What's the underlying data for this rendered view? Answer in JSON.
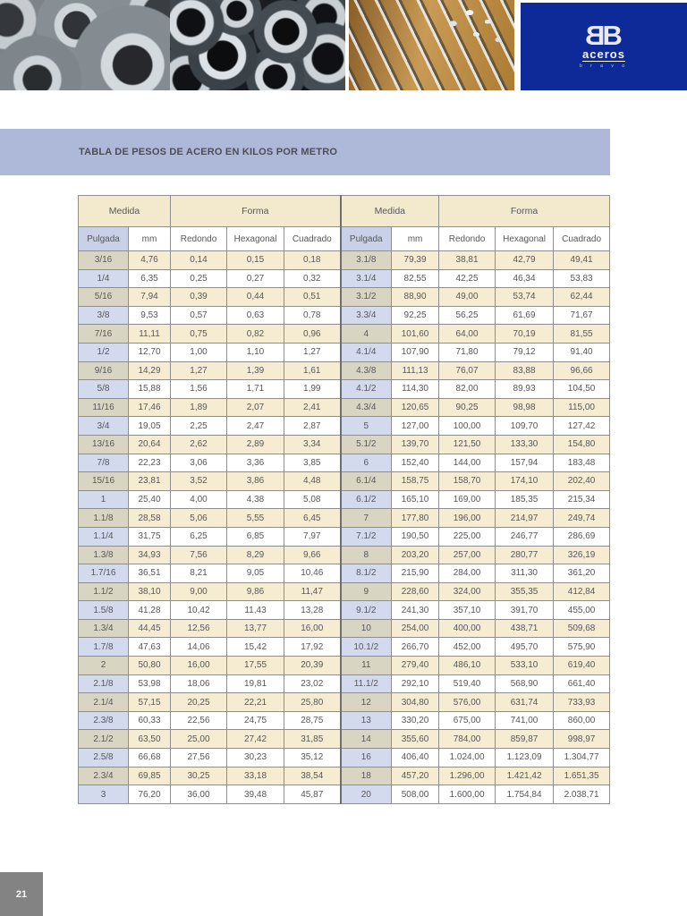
{
  "header": {
    "photos": [
      "steel-coils",
      "steel-tubes",
      "steel-rods"
    ],
    "logo": {
      "brand_initials": "BB",
      "brand_name": "aceros",
      "brand_sub": "b r a v o"
    },
    "brand_color": "#0e2a99"
  },
  "title_bar": {
    "title": "TABLA DE PESOS DE ACERO EN KILOS POR METRO",
    "background": "#aeb9da"
  },
  "table": {
    "group_headers": {
      "medida_left": "Medida",
      "forma_left": "Forma",
      "medida_right": "Medida",
      "forma_right": "Forma"
    },
    "column_headers": [
      "Pulgada",
      "mm",
      "Redondo",
      "Hexagonal",
      "Cuadrado",
      "Pulgada",
      "mm",
      "Redondo",
      "Hexagonal",
      "Cuadrado"
    ],
    "colors": {
      "cream": "#f6ecd2",
      "pulgada_cream": "#d9d5c3",
      "pulgada_lavender": "#d3daee",
      "header_cream": "#f3e9cd",
      "subheader_lavender": "#c9d1e8",
      "border": "#8e8e8e"
    },
    "rows": [
      [
        "3/16",
        "4,76",
        "0,14",
        "0,15",
        "0,18",
        "3.1/8",
        "79,39",
        "38,81",
        "42,79",
        "49,41"
      ],
      [
        "1/4",
        "6,35",
        "0,25",
        "0,27",
        "0,32",
        "3.1/4",
        "82,55",
        "42,25",
        "46,34",
        "53,83"
      ],
      [
        "5/16",
        "7,94",
        "0,39",
        "0,44",
        "0,51",
        "3.1/2",
        "88,90",
        "49,00",
        "53,74",
        "62,44"
      ],
      [
        "3/8",
        "9,53",
        "0,57",
        "0,63",
        "0,78",
        "3.3/4",
        "92,25",
        "56,25",
        "61,69",
        "71,67"
      ],
      [
        "7/16",
        "11,11",
        "0,75",
        "0,82",
        "0,96",
        "4",
        "101,60",
        "64,00",
        "70,19",
        "81,55"
      ],
      [
        "1/2",
        "12,70",
        "1,00",
        "1,10",
        "1,27",
        "4.1/4",
        "107,90",
        "71,80",
        "79,12",
        "91,40"
      ],
      [
        "9/16",
        "14,29",
        "1,27",
        "1,39",
        "1,61",
        "4.3/8",
        "111,13",
        "76,07",
        "83,88",
        "96,66"
      ],
      [
        "5/8",
        "15,88",
        "1,56",
        "1,71",
        "1,99",
        "4.1/2",
        "114,30",
        "82,00",
        "89,93",
        "104,50"
      ],
      [
        "11/16",
        "17,46",
        "1,89",
        "2,07",
        "2,41",
        "4.3/4",
        "120,65",
        "90,25",
        "98,98",
        "115,00"
      ],
      [
        "3/4",
        "19,05",
        "2,25",
        "2,47",
        "2,87",
        "5",
        "127,00",
        "100,00",
        "109,70",
        "127,42"
      ],
      [
        "13/16",
        "20,64",
        "2,62",
        "2,89",
        "3,34",
        "5.1/2",
        "139,70",
        "121,50",
        "133,30",
        "154,80"
      ],
      [
        "7/8",
        "22,23",
        "3,06",
        "3,36",
        "3,85",
        "6",
        "152,40",
        "144,00",
        "157,94",
        "183,48"
      ],
      [
        "15/16",
        "23,81",
        "3,52",
        "3,86",
        "4,48",
        "6.1/4",
        "158,75",
        "158,70",
        "174,10",
        "202,40"
      ],
      [
        "1",
        "25,40",
        "4,00",
        "4,38",
        "5,08",
        "6.1/2",
        "165,10",
        "169,00",
        "185,35",
        "215,34"
      ],
      [
        "1.1/8",
        "28,58",
        "5,06",
        "5,55",
        "6,45",
        "7",
        "177,80",
        "196,00",
        "214,97",
        "249,74"
      ],
      [
        "1.1/4",
        "31,75",
        "6,25",
        "6,85",
        "7,97",
        "7.1/2",
        "190,50",
        "225,00",
        "246,77",
        "286,69"
      ],
      [
        "1.3/8",
        "34,93",
        "7,56",
        "8,29",
        "9,66",
        "8",
        "203,20",
        "257,00",
        "280,77",
        "326,19"
      ],
      [
        "1.7/16",
        "36,51",
        "8,21",
        "9,05",
        "10,46",
        "8.1/2",
        "215,90",
        "284,00",
        "311,30",
        "361,20"
      ],
      [
        "1.1/2",
        "38,10",
        "9,00",
        "9,86",
        "11,47",
        "9",
        "228,60",
        "324,00",
        "355,35",
        "412,84"
      ],
      [
        "1.5/8",
        "41,28",
        "10,42",
        "11,43",
        "13,28",
        "9.1/2",
        "241,30",
        "357,10",
        "391,70",
        "455,00"
      ],
      [
        "1.3/4",
        "44,45",
        "12,56",
        "13,77",
        "16,00",
        "10",
        "254,00",
        "400,00",
        "438,71",
        "509,68"
      ],
      [
        "1.7/8",
        "47,63",
        "14,06",
        "15,42",
        "17,92",
        "10.1/2",
        "266,70",
        "452,00",
        "495,70",
        "575,90"
      ],
      [
        "2",
        "50,80",
        "16,00",
        "17,55",
        "20,39",
        "11",
        "279,40",
        "486,10",
        "533,10",
        "619,40"
      ],
      [
        "2.1/8",
        "53,98",
        "18,06",
        "19,81",
        "23,02",
        "11.1/2",
        "292,10",
        "519,40",
        "568,90",
        "661,40"
      ],
      [
        "2.1/4",
        "57,15",
        "20,25",
        "22,21",
        "25,80",
        "12",
        "304,80",
        "576,00",
        "631,74",
        "733,93"
      ],
      [
        "2.3/8",
        "60,33",
        "22,56",
        "24,75",
        "28,75",
        "13",
        "330,20",
        "675,00",
        "741,00",
        "860,00"
      ],
      [
        "2.1/2",
        "63,50",
        "25,00",
        "27,42",
        "31,85",
        "14",
        "355,60",
        "784,00",
        "859,87",
        "998,97"
      ],
      [
        "2.5/8",
        "66,68",
        "27,56",
        "30,23",
        "35,12",
        "16",
        "406,40",
        "1.024,00",
        "1.123,09",
        "1.304,77"
      ],
      [
        "2.3/4",
        "69,85",
        "30,25",
        "33,18",
        "38,54",
        "18",
        "457,20",
        "1.296,00",
        "1.421,42",
        "1.651,35"
      ],
      [
        "3",
        "76,20",
        "36,00",
        "39,48",
        "45,87",
        "20",
        "508,00",
        "1.600,00",
        "1.754,84",
        "2.038,71"
      ]
    ]
  },
  "footer": {
    "page_number": "21"
  }
}
